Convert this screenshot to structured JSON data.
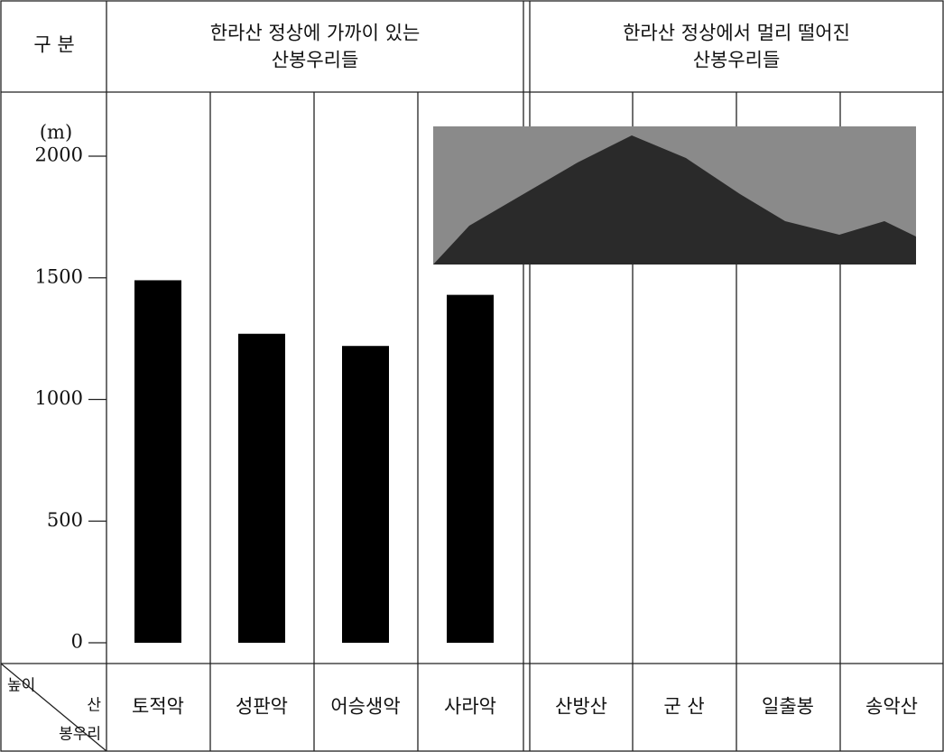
{
  "header": {
    "corner": "구  분",
    "group_near": [
      "한라산 정상에   가까이 있는",
      "산봉우리들"
    ],
    "group_far": [
      "한라산 정상에서 멀리 떨어진",
      "산봉우리들"
    ]
  },
  "corner_cell": {
    "top": "높이",
    "right": "산",
    "bottom": "봉우리"
  },
  "chart_data": {
    "type": "bar",
    "ylabel": "(m)",
    "categories": [
      "토적악",
      "성판악",
      "어승생악",
      "사라악",
      "산방산",
      "군 산",
      "일출봉",
      "송악산"
    ],
    "values": [
      1490,
      1270,
      1220,
      1430,
      null,
      null,
      null,
      null
    ],
    "color": "#000000",
    "ylim": [
      0,
      2000
    ],
    "yticks": [
      0,
      500,
      1000,
      1500,
      2000
    ]
  }
}
